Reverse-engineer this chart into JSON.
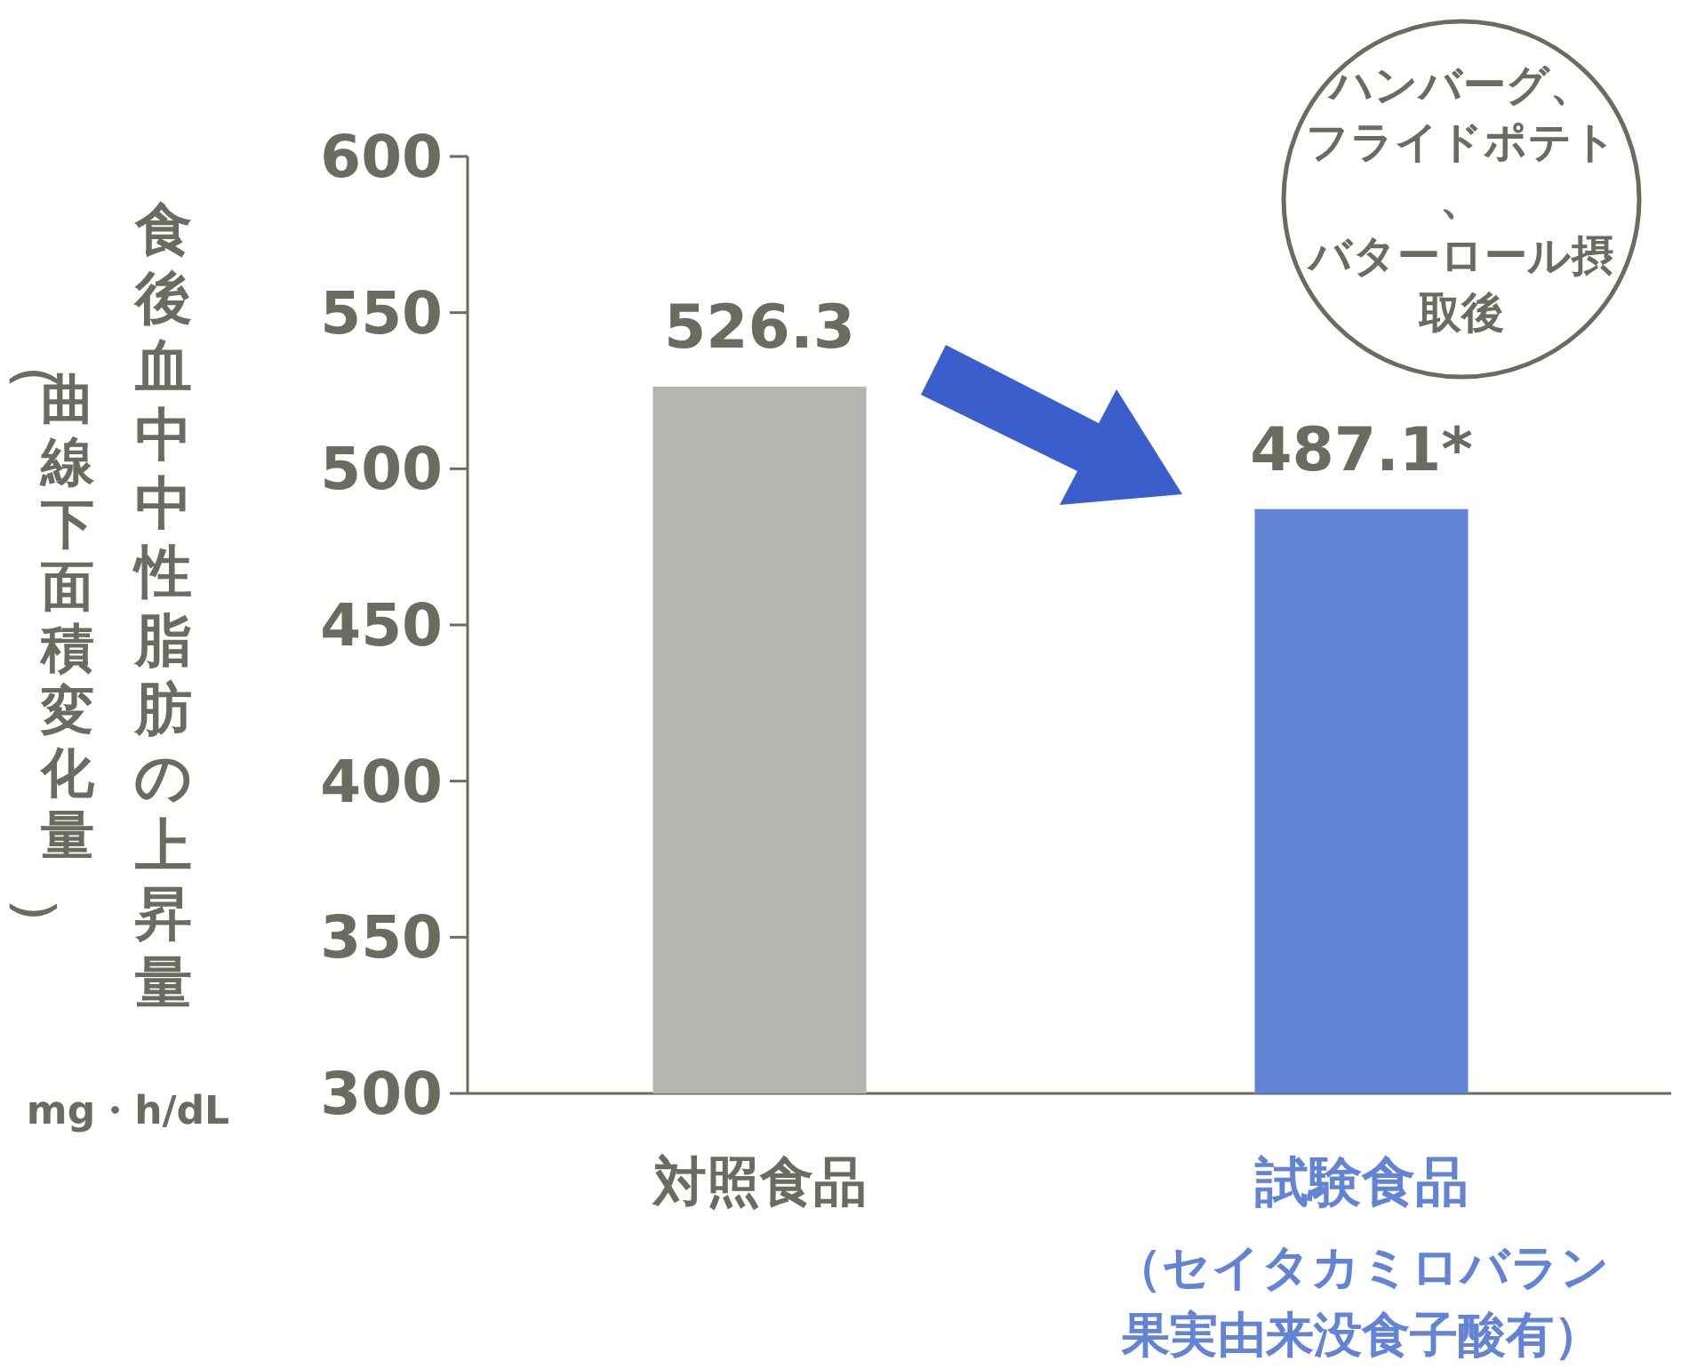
{
  "chart_data": {
    "type": "bar",
    "categories": [
      "対照食品",
      "試験食品"
    ],
    "values": [
      526.3,
      487.1
    ],
    "colors": [
      "#b4b5b0",
      "#6383d4"
    ],
    "value_labels": [
      "526.3",
      "487.1*"
    ],
    "ylabel": "食後血中中性脂肪の上昇量",
    "ylim": [
      300,
      600
    ],
    "yticks": [
      300,
      350,
      400,
      450,
      500,
      550,
      600
    ],
    "grid": false,
    "annotations": [
      "（曲線下面積変化量）",
      "mg・h/dL",
      "ハンバーグ、フライドポテト、バターロール摂取後",
      "（セイタカミロバラン果実由来没食子酸有）"
    ]
  }
}
